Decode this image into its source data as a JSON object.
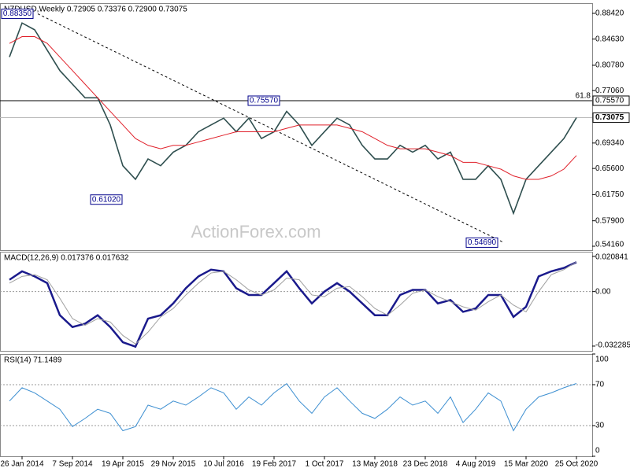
{
  "chart_data": [
    {
      "type": "line",
      "title": "NZDUSD,Weekly 0.72905 0.73376 0.72900 0.73075",
      "series": [
        {
          "color": "#2f4f4f",
          "values": [
            0.82,
            0.87,
            0.86,
            0.83,
            0.8,
            0.78,
            0.76,
            0.76,
            0.72,
            0.66,
            0.64,
            0.67,
            0.66,
            0.68,
            0.69,
            0.71,
            0.72,
            0.73,
            0.71,
            0.73,
            0.7,
            0.71,
            0.74,
            0.72,
            0.69,
            0.71,
            0.73,
            0.72,
            0.69,
            0.67,
            0.67,
            0.69,
            0.68,
            0.69,
            0.67,
            0.68,
            0.64,
            0.64,
            0.66,
            0.64,
            0.59,
            0.64,
            0.66,
            0.68,
            0.7,
            0.73075
          ]
        },
        {
          "color": "#e0202a",
          "values": [
            0.84,
            0.85,
            0.85,
            0.84,
            0.82,
            0.8,
            0.78,
            0.76,
            0.74,
            0.72,
            0.7,
            0.69,
            0.685,
            0.69,
            0.69,
            0.695,
            0.7,
            0.705,
            0.71,
            0.71,
            0.71,
            0.71,
            0.715,
            0.72,
            0.72,
            0.72,
            0.72,
            0.715,
            0.71,
            0.7,
            0.69,
            0.685,
            0.685,
            0.685,
            0.68,
            0.675,
            0.665,
            0.665,
            0.66,
            0.655,
            0.645,
            0.64,
            0.64,
            0.645,
            0.655,
            0.675
          ]
        }
      ],
      "ylim": [
        0.5358,
        0.8992
      ],
      "yticks": [
        {
          "value": 0.8842,
          "label": "0.88420"
        },
        {
          "value": 0.8463,
          "label": "0.84630"
        },
        {
          "value": 0.8078,
          "label": "0.80780"
        },
        {
          "value": 0.7706,
          "label": "0.77060"
        },
        {
          "value": 0.6934,
          "label": "0.69340"
        },
        {
          "value": 0.656,
          "label": "0.65600"
        },
        {
          "value": 0.6175,
          "label": "0.61750"
        },
        {
          "value": 0.579,
          "label": "0.57900"
        },
        {
          "value": 0.5416,
          "label": "0.54160"
        }
      ],
      "annotations": [
        {
          "value": 0.8835,
          "label": "0.88350"
        },
        {
          "value": 0.7557,
          "label": "0.75570"
        },
        {
          "value": 0.6102,
          "label": "0.61020"
        },
        {
          "value": 0.5469,
          "label": "0.54690"
        }
      ],
      "fib_level": {
        "value": 0.7557,
        "label": "61.8"
      },
      "current_price": 0.73075,
      "trendline": [
        0.8835,
        0.5469
      ],
      "watermark": "ActionForex.com"
    },
    {
      "type": "line",
      "title": "MACD(12,26,9) 0.017376 0.017632",
      "series": [
        {
          "color": "#1a1a8c",
          "values": [
            0.007,
            0.012,
            0.009,
            0.005,
            -0.014,
            -0.021,
            -0.019,
            -0.014,
            -0.021,
            -0.03,
            -0.0326,
            -0.016,
            -0.014,
            -0.007,
            0.002,
            0.009,
            0.013,
            0.012,
            0.002,
            -0.002,
            -0.002,
            0.005,
            0.012,
            0.002,
            -0.007,
            0,
            0.005,
            0,
            -0.007,
            -0.014,
            -0.014,
            -0.002,
            0.001,
            0.001,
            -0.007,
            -0.005,
            -0.012,
            -0.01,
            -0.002,
            -0.002,
            -0.015,
            -0.009,
            0.009,
            0.012,
            0.014,
            0.0174
          ]
        },
        {
          "color": "#a0a0a0",
          "values": [
            0.005,
            0.009,
            0.01,
            0.007,
            -0.004,
            -0.016,
            -0.02,
            -0.016,
            -0.018,
            -0.026,
            -0.031,
            -0.024,
            -0.015,
            -0.01,
            -0.002,
            0.005,
            0.011,
            0.012,
            0.007,
            0.001,
            -0.002,
            0.001,
            0.008,
            0.007,
            -0.002,
            -0.003,
            0.002,
            0.003,
            -0.003,
            -0.01,
            -0.014,
            -0.008,
            -0.001,
            0.001,
            -0.003,
            -0.006,
            -0.009,
            -0.011,
            -0.006,
            -0.002,
            -0.008,
            -0.012,
            0,
            0.01,
            0.013,
            0.0176
          ]
        }
      ],
      "ylim": [
        -0.0351,
        0.0236
      ],
      "yticks": [
        0.020841,
        {
          "value": 0,
          "label": "0.00"
        },
        -0.032285
      ],
      "levels": [
        0
      ]
    },
    {
      "type": "line",
      "title": "RSI(14) 71.1489",
      "categories": [
        null,
        "26 Jan 2014",
        null,
        null,
        null,
        "7 Sep 2014",
        null,
        null,
        null,
        "19 Apr 2015",
        null,
        null,
        null,
        "29 Nov 2015",
        null,
        null,
        null,
        "10 Jul 2016",
        null,
        null,
        null,
        "19 Feb 2017",
        null,
        null,
        null,
        "1 Oct 2017",
        null,
        null,
        null,
        "13 May 2018",
        null,
        null,
        null,
        "23 Dec 2018",
        null,
        null,
        null,
        "4 Aug 2019",
        null,
        null,
        null,
        "15 Mar 2020",
        null,
        null,
        null,
        "25 Oct 2020"
      ],
      "series": [
        {
          "color": "#3d8fd1",
          "values": [
            54,
            67,
            62,
            54,
            46,
            29,
            37,
            46,
            42,
            25,
            29,
            50,
            46,
            54,
            50,
            58,
            67,
            62,
            46,
            58,
            50,
            62,
            71,
            54,
            42,
            58,
            67,
            54,
            42,
            37,
            46,
            58,
            50,
            54,
            42,
            58,
            33,
            46,
            62,
            54,
            25,
            46,
            58,
            62,
            67,
            71.1489
          ]
        }
      ],
      "ylim": [
        0,
        100
      ],
      "yticks": [
        100,
        70,
        30,
        0
      ],
      "levels": [
        70,
        30
      ]
    }
  ]
}
